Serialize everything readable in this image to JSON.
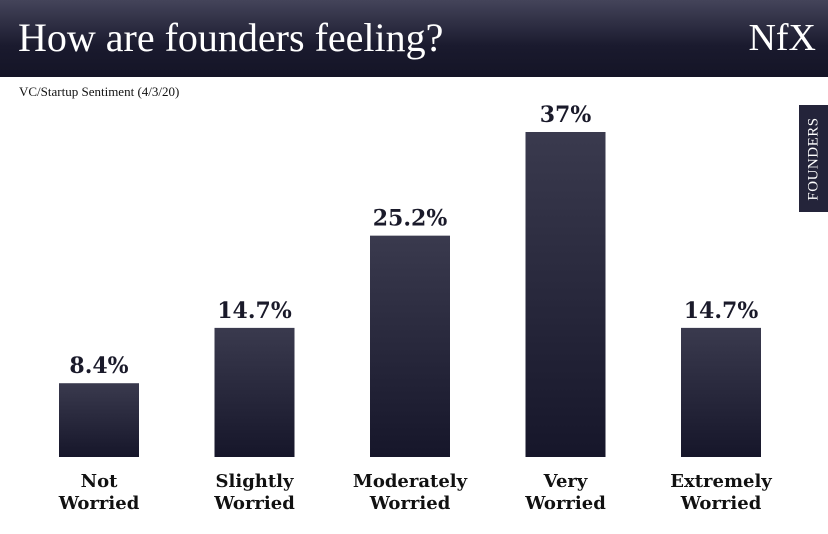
{
  "header": {
    "title": "How are founders feeling?",
    "logo": "NfX"
  },
  "side_tab": "FOUNDERS",
  "chart_data": {
    "type": "bar",
    "title": "How are founders feeling?",
    "subtitle": "VC/Startup Sentiment (4/3/20)",
    "categories": [
      [
        "Not",
        "Worried"
      ],
      [
        "Slightly",
        "Worried"
      ],
      [
        "Moderately",
        "Worried"
      ],
      [
        "Very",
        "Worried"
      ],
      [
        "Extremely",
        "Worried"
      ]
    ],
    "values": [
      8.4,
      14.7,
      25.2,
      37,
      14.7
    ],
    "labels": [
      "8.4%",
      "14.7%",
      "25.2%",
      "37%",
      "14.7%"
    ],
    "xlabel": "",
    "ylabel": "",
    "ylim": [
      0,
      37
    ],
    "grid": false,
    "colors": {
      "bar_top": "#3a3a4e",
      "bar_bottom": "#16162a"
    }
  }
}
